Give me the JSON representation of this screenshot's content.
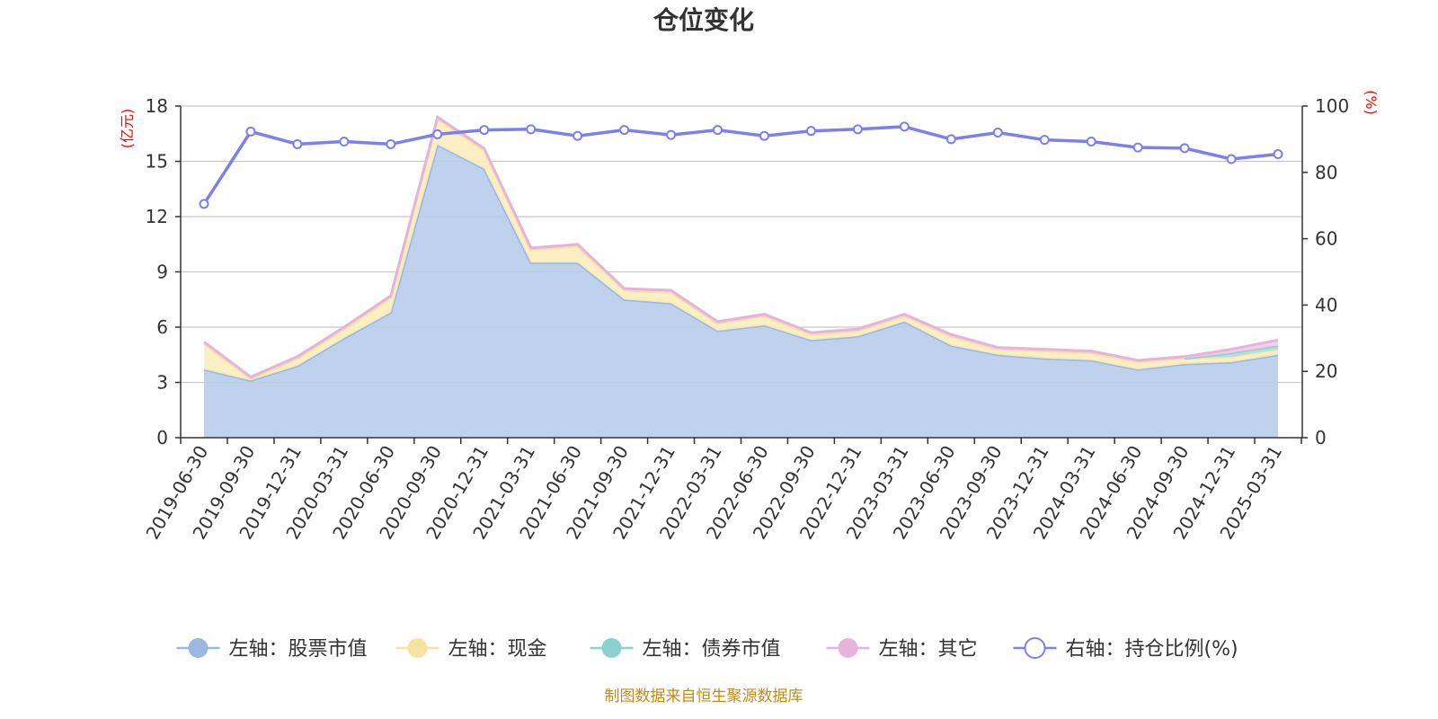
{
  "chart_data": {
    "type": "area",
    "title": "仓位变化",
    "left_axis_unit": "(亿元)",
    "right_axis_unit": "(%)",
    "left_ylim": [
      0,
      18
    ],
    "left_yticks": [
      0,
      3,
      6,
      9,
      12,
      15,
      18
    ],
    "right_ylim": [
      0,
      100
    ],
    "right_yticks": [
      0,
      20,
      40,
      60,
      80,
      100
    ],
    "categories": [
      "2019-06-30",
      "2019-09-30",
      "2019-12-31",
      "2020-03-31",
      "2020-06-30",
      "2020-09-30",
      "2020-12-31",
      "2021-03-31",
      "2021-06-30",
      "2021-09-30",
      "2021-12-31",
      "2022-03-31",
      "2022-06-30",
      "2022-09-30",
      "2022-12-31",
      "2023-03-31",
      "2023-06-30",
      "2023-09-30",
      "2023-12-31",
      "2024-03-31",
      "2024-06-30",
      "2024-09-30",
      "2024-12-31",
      "2025-03-31"
    ],
    "series": [
      {
        "name": "左轴：股票市值",
        "axis": "left",
        "kind": "stacked-area",
        "color": "#9ab8e0",
        "fill": "#b8cdeb",
        "values": [
          3.7,
          3.1,
          3.9,
          5.4,
          6.8,
          15.9,
          14.6,
          9.5,
          9.5,
          7.5,
          7.3,
          5.8,
          6.1,
          5.3,
          5.5,
          6.3,
          5.0,
          4.5,
          4.3,
          4.2,
          3.7,
          4.0,
          4.1,
          4.5
        ]
      },
      {
        "name": "左轴：现金",
        "axis": "left",
        "kind": "stacked-area",
        "color": "#f7e3a1",
        "fill": "#fbedbd",
        "values": [
          1.4,
          0.1,
          0.4,
          0.5,
          0.8,
          1.4,
          1.0,
          0.7,
          0.9,
          0.5,
          0.6,
          0.4,
          0.5,
          0.3,
          0.3,
          0.3,
          0.5,
          0.3,
          0.4,
          0.4,
          0.4,
          0.3,
          0.3,
          0.3
        ]
      },
      {
        "name": "左轴：债券市值",
        "axis": "left",
        "kind": "stacked-area",
        "color": "#8dd0d0",
        "fill": "#a9dede",
        "values": [
          0,
          0,
          0,
          0,
          0,
          0,
          0,
          0,
          0,
          0,
          0,
          0,
          0,
          0,
          0,
          0,
          0,
          0,
          0,
          0,
          0,
          0,
          0.2,
          0.2
        ]
      },
      {
        "name": "左轴：其它",
        "axis": "left",
        "kind": "stacked-area",
        "color": "#e6b3da",
        "fill": "#f0cde8",
        "values": [
          0.1,
          0.1,
          0.1,
          0.1,
          0.1,
          0.1,
          0.1,
          0.1,
          0.1,
          0.1,
          0.1,
          0.1,
          0.1,
          0.1,
          0.1,
          0.1,
          0.1,
          0.1,
          0.1,
          0.1,
          0.1,
          0.1,
          0.2,
          0.3
        ]
      },
      {
        "name": "右轴：持仓比例(%)",
        "axis": "right",
        "kind": "line",
        "color": "#7b7ff0",
        "values": [
          70.5,
          92.3,
          88.5,
          89.3,
          88.5,
          91.5,
          92.8,
          93.0,
          91.0,
          92.8,
          91.3,
          92.8,
          91.0,
          92.5,
          93.0,
          93.8,
          90.0,
          92.0,
          89.8,
          89.3,
          87.5,
          87.3,
          84.0,
          85.5
        ]
      }
    ],
    "legend_position": "bottom-center",
    "grid": true
  },
  "source_note": "制图数据来自恒生聚源数据库"
}
